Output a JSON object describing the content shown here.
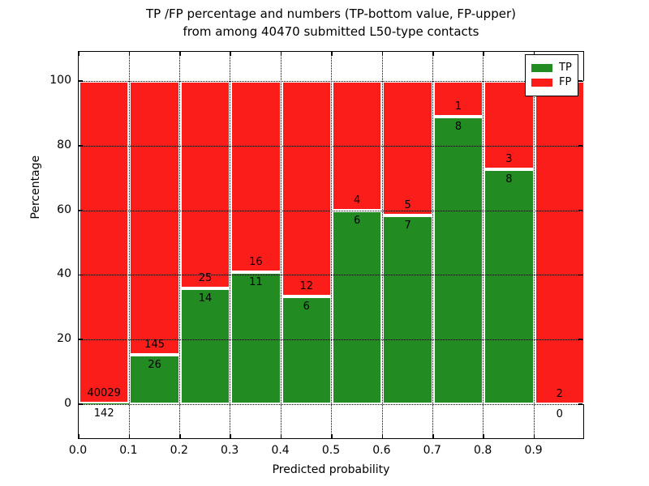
{
  "title": {
    "line1": "TP /FP percentage and numbers (TP-bottom value, FP-upper)",
    "line2": "from among 40470 submitted L50-type contacts"
  },
  "axes": {
    "xlabel": "Predicted probability",
    "ylabel": "Percentage",
    "x_ticks": [
      "0.0",
      "0.1",
      "0.2",
      "0.3",
      "0.4",
      "0.5",
      "0.6",
      "0.7",
      "0.8",
      "0.9"
    ],
    "y_ticks": [
      "0",
      "20",
      "40",
      "60",
      "80",
      "100"
    ],
    "y_tick_values": [
      0,
      20,
      40,
      60,
      80,
      100
    ]
  },
  "legend": {
    "items": [
      {
        "label": "TP",
        "color": "#228b22"
      },
      {
        "label": "FP",
        "color": "#fb1d1a"
      }
    ]
  },
  "colors": {
    "tp_green": "#228b22",
    "fp_red": "#fb1d1a",
    "bar_edge": "#ffffff",
    "grid": "#000000",
    "background": "#ffffff"
  },
  "chart_data": {
    "type": "bar",
    "stacked": true,
    "percentage_stack_total": 100,
    "title": "TP /FP percentage and numbers (TP-bottom value, FP-upper)\nfrom among 40470 submitted L50-type contacts",
    "xlabel": "Predicted probability",
    "ylabel": "Percentage",
    "xlim": [
      0.0,
      1.0
    ],
    "ylim": [
      -11,
      109
    ],
    "grid": true,
    "legend_position": "upper right",
    "total_submitted_contacts": 40470,
    "bin_edges": [
      0.0,
      0.1,
      0.2,
      0.3,
      0.4,
      0.5,
      0.6,
      0.7,
      0.8,
      0.9,
      1.0
    ],
    "series": [
      {
        "name": "TP",
        "color": "#228b22",
        "counts": [
          142,
          26,
          14,
          11,
          6,
          6,
          7,
          8,
          8,
          0
        ],
        "percentages": [
          0.35,
          15.2,
          35.9,
          40.74,
          33.33,
          60.0,
          58.33,
          88.89,
          72.73,
          0.0
        ]
      },
      {
        "name": "FP",
        "color": "#fb1d1a",
        "counts": [
          40029,
          145,
          25,
          16,
          12,
          4,
          5,
          1,
          3,
          2
        ],
        "percentages": [
          99.65,
          84.8,
          64.1,
          59.26,
          66.67,
          40.0,
          41.67,
          11.11,
          27.27,
          100.0
        ]
      }
    ]
  }
}
